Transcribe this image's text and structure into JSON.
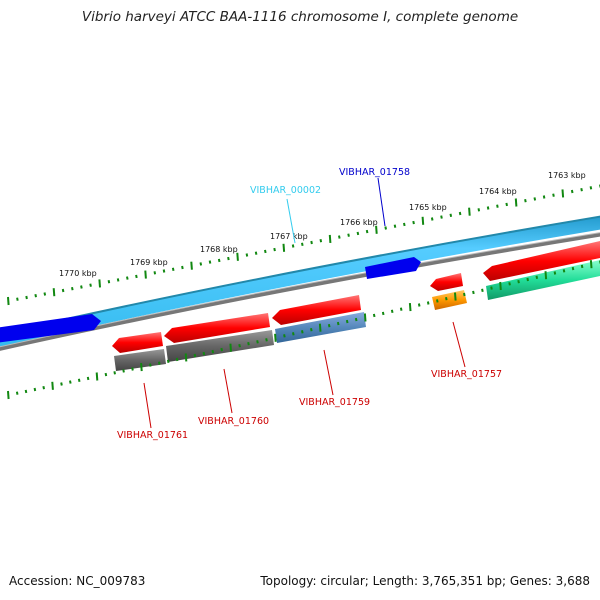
{
  "title": "Vibrio harveyi ATCC BAA-1116 chromosome I, complete genome",
  "footer": {
    "accession": "Accession: NC_009783",
    "summary": "Topology: circular; Length: 3,765,351 bp; Genes: 3,688"
  },
  "ticks": [
    "1770 kbp",
    "1769 kbp",
    "1768 kbp",
    "1767 kbp",
    "1766 kbp",
    "1765 kbp",
    "1764 kbp",
    "1763 kbp"
  ],
  "genes": [
    {
      "name": "VIBHAR_00002",
      "color": "#33ccee"
    },
    {
      "name": "VIBHAR_01758",
      "color": "#0000cc"
    },
    {
      "name": "VIBHAR_01757",
      "color": "#cc0000"
    },
    {
      "name": "VIBHAR_01759",
      "color": "#cc0000"
    },
    {
      "name": "VIBHAR_01760",
      "color": "#cc0000"
    },
    {
      "name": "VIBHAR_01761",
      "color": "#cc0000"
    }
  ],
  "colors": {
    "cds_forward": "#ff0000",
    "gene_gray": "#666666",
    "misc_blue": "#5588bb",
    "rna_orange": "#ff9900",
    "rna_green": "#22dd99",
    "feature_blue": "#0000ee",
    "feature_cyan": "#33bbee",
    "backbone": "#888888",
    "tick_green": "#118811"
  }
}
